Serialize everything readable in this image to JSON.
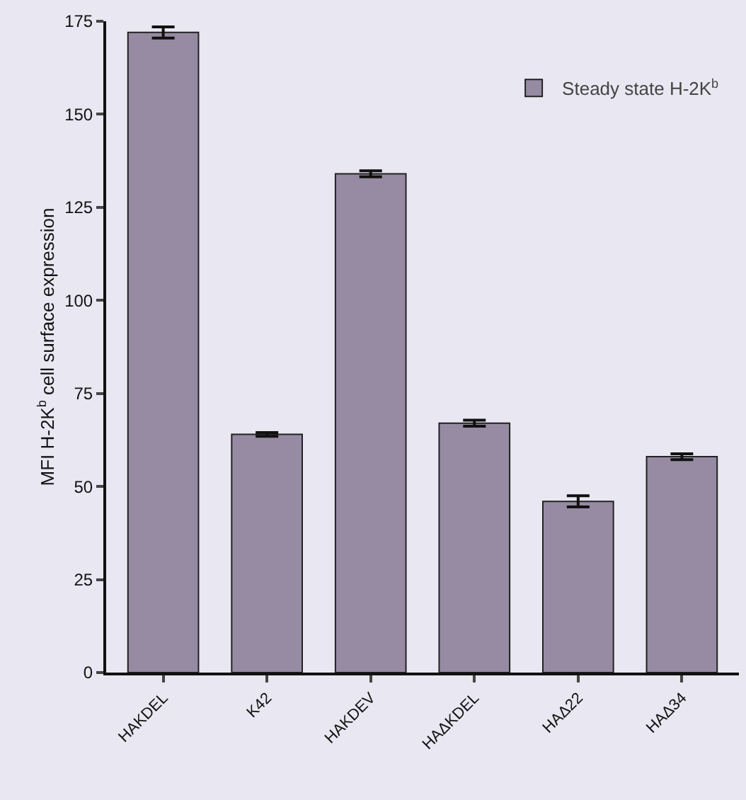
{
  "chart_data": {
    "type": "bar",
    "ylabel": "MFI H-2K$^{b}$ cell surface expression",
    "categories": [
      "HAKDEL",
      "K42",
      "HAKDEV",
      "HAΔKDEL",
      "HAΔ22",
      "HAΔ34"
    ],
    "series": [
      {
        "name": "Steady state H-2K$^{b}$",
        "color": "#978ba3",
        "values": [
          172,
          64,
          134,
          67,
          46,
          58
        ],
        "errors": [
          1.5,
          0.5,
          0.8,
          0.8,
          1.5,
          0.8
        ]
      }
    ],
    "ylim": [
      0,
      175
    ],
    "yticks": [
      0,
      25,
      50,
      75,
      100,
      125,
      150,
      175
    ],
    "grid": false,
    "legend": "top right"
  }
}
